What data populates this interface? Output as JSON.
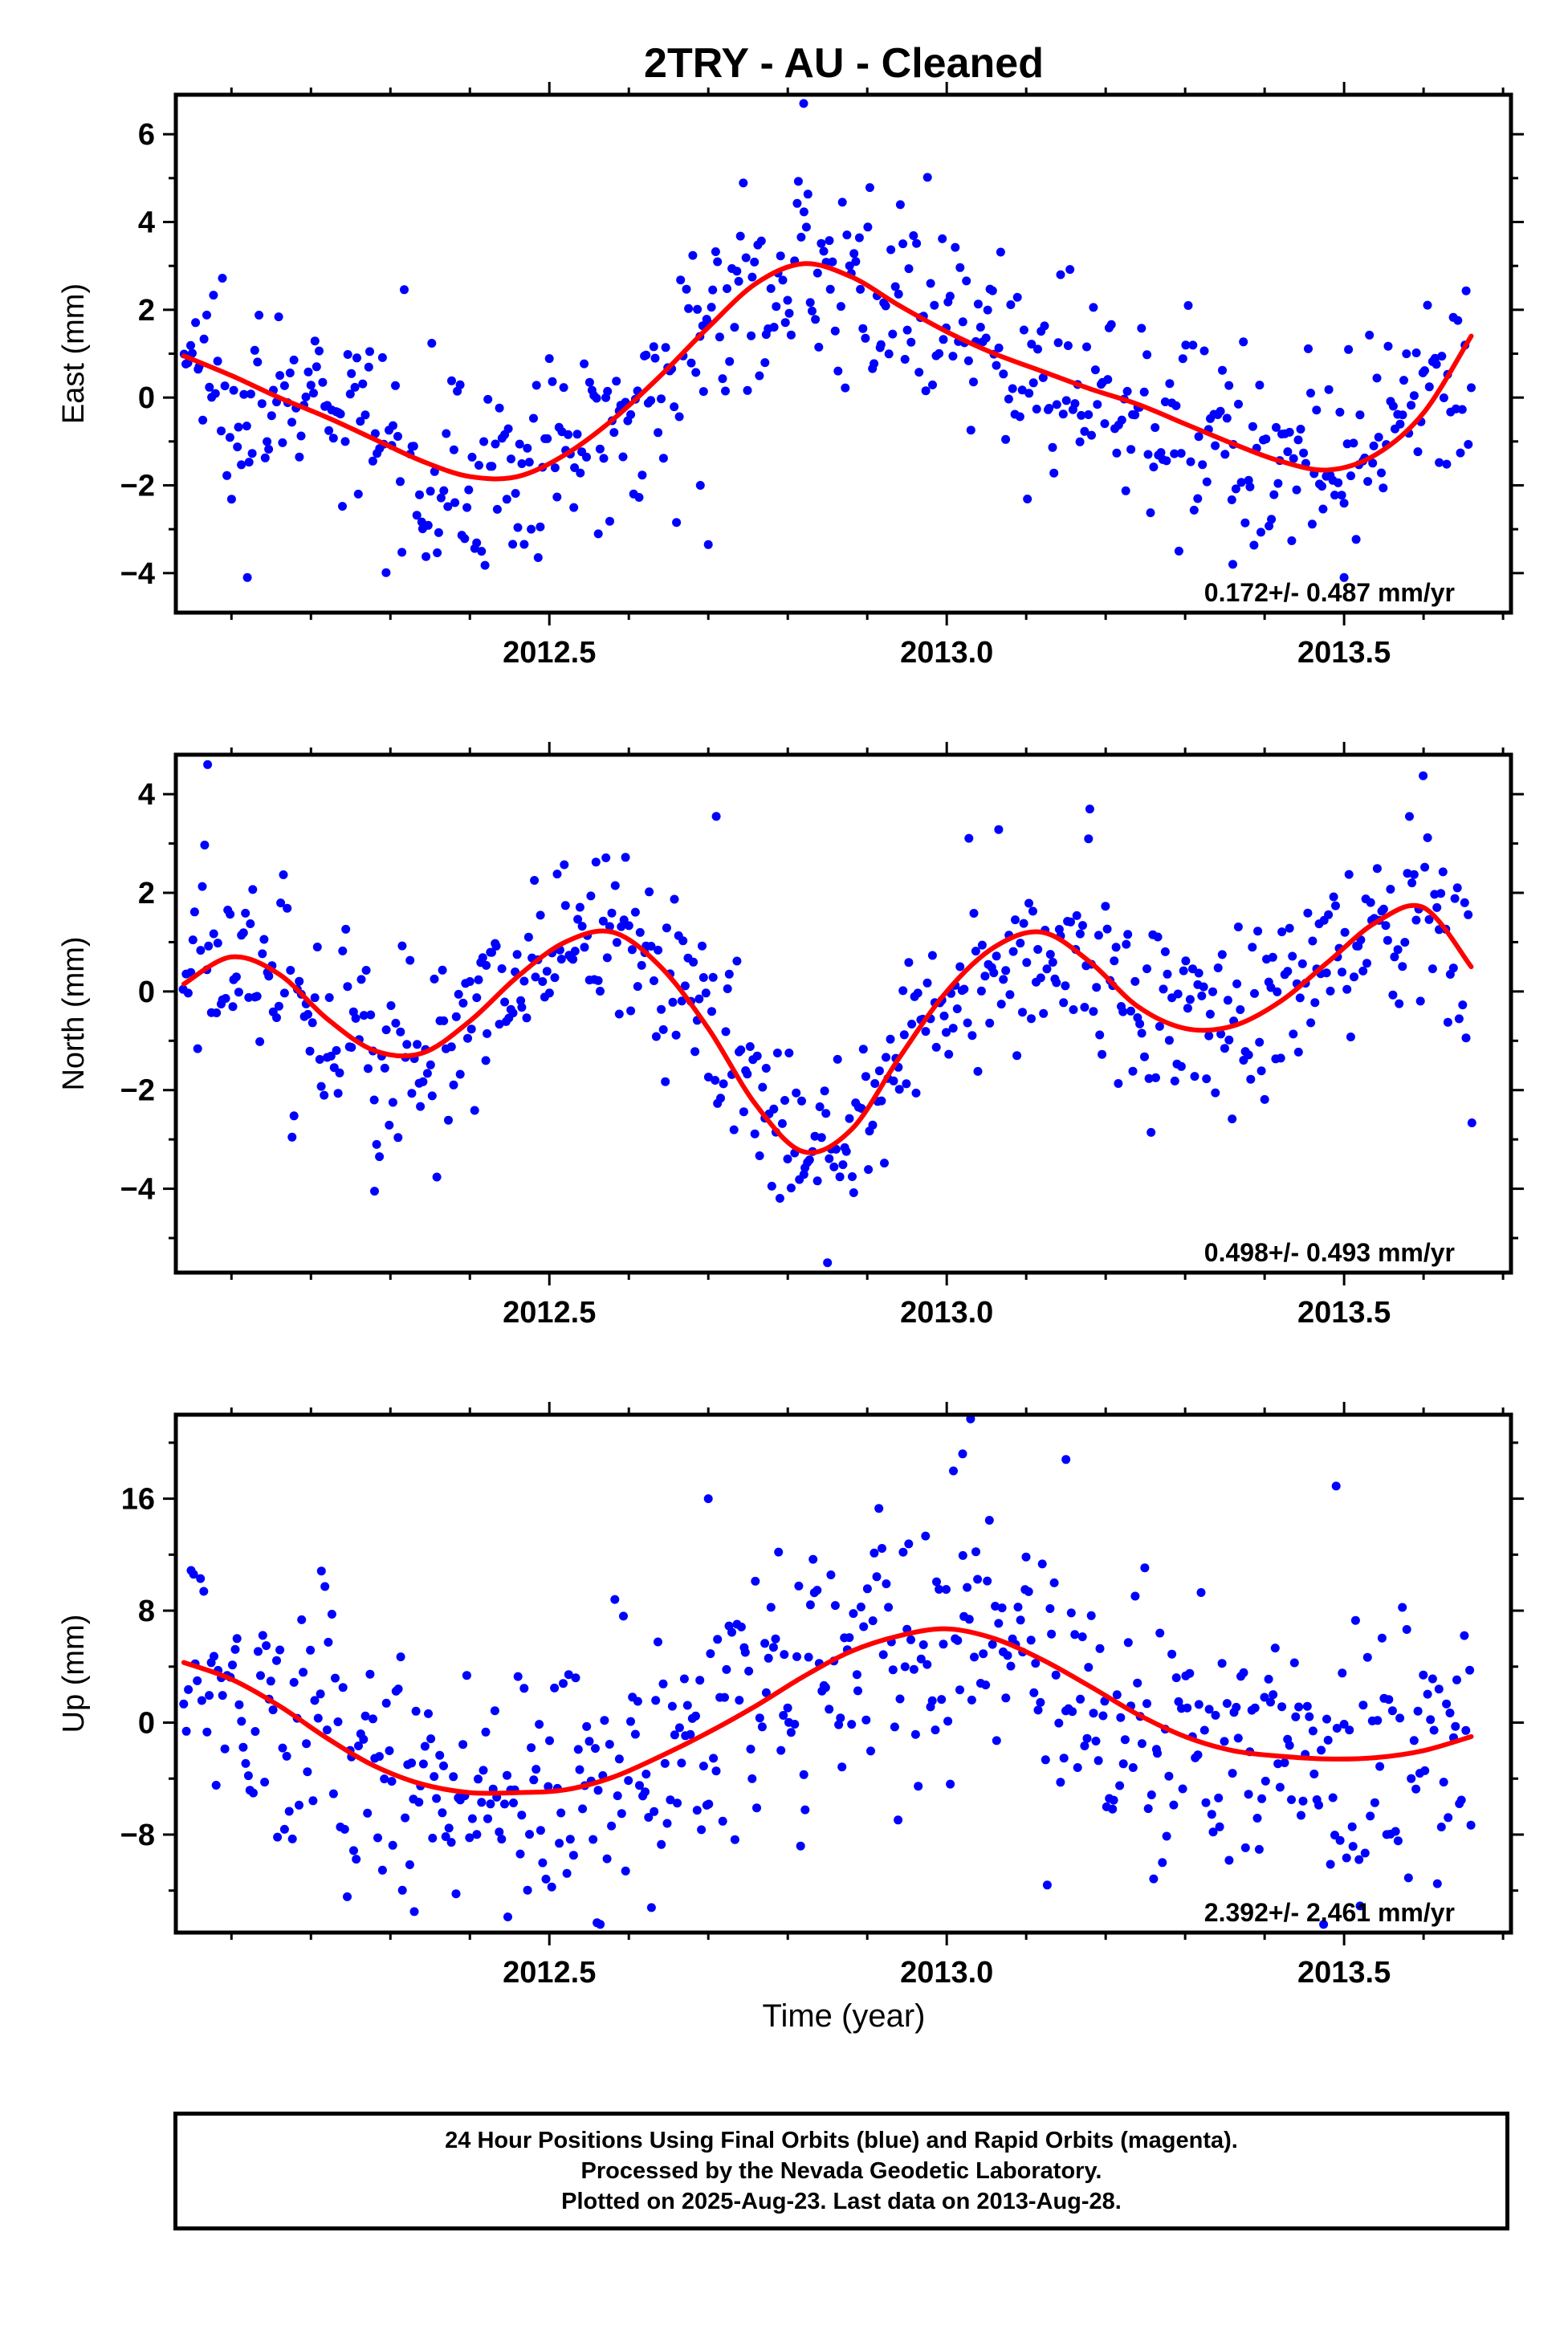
{
  "title": "2TRY  - AU - Cleaned",
  "xlabel": "Time (year)",
  "footer": {
    "line1": "24 Hour Positions Using Final Orbits (blue) and Rapid Orbits (magenta).",
    "line2": "Processed by the Nevada Geodetic Laboratory.",
    "line3": "Plotted on 2025-Aug-23. Last data on 2013-Aug-28."
  },
  "colors": {
    "points": "#0000ff",
    "fit": "#ff0000",
    "axes": "#000000"
  },
  "chart_data": [
    {
      "type": "scatter",
      "ylabel": "East (mm)",
      "rate_text": "0.172+/- 0.487 mm/yr",
      "xlim": [
        2012.03,
        2013.71
      ],
      "ylim": [
        -4.9,
        6.9
      ],
      "xticks": [
        2012.5,
        2013.0,
        2013.5
      ],
      "xtick_labels": [
        "2012.5",
        "2013.0",
        "2013.5"
      ],
      "yticks": [
        -4,
        -2,
        0,
        2,
        4,
        6
      ],
      "ytick_labels": [
        "−4",
        "−2",
        "0",
        "2",
        "4",
        "6"
      ],
      "series": [
        {
          "kind": "points",
          "scatter": 1.1,
          "outliers": [
            [
              2012.82,
              6.7
            ],
            [
              2012.12,
              -4.1
            ],
            [
              2012.7,
              -3.35
            ],
            [
              2012.69,
              -2.0
            ],
            [
              2013.36,
              -3.8
            ],
            [
              2013.5,
              -4.1
            ]
          ],
          "x": [
            2012.04,
            2012.1,
            2012.16,
            2012.22,
            2012.28,
            2012.34,
            2012.4,
            2012.46,
            2012.52,
            2012.58,
            2012.64,
            2012.7,
            2012.76,
            2012.82,
            2012.88,
            2012.94,
            2013.0,
            2013.06,
            2013.12,
            2013.18,
            2013.24,
            2013.3,
            2013.36,
            2013.42,
            2013.48,
            2013.54,
            2013.6,
            2013.66
          ],
          "y": [
            1.0,
            0.45,
            -0.05,
            -0.4,
            -0.85,
            -1.35,
            -1.75,
            -1.8,
            -1.35,
            -0.5,
            0.5,
            1.6,
            2.6,
            3.0,
            2.7,
            2.1,
            1.5,
            1.0,
            0.6,
            0.25,
            -0.1,
            -0.5,
            -0.95,
            -1.4,
            -1.7,
            -1.35,
            -0.35,
            1.2
          ]
        },
        {
          "kind": "fit",
          "x": [
            2012.04,
            2012.1,
            2012.16,
            2012.22,
            2012.28,
            2012.34,
            2012.4,
            2012.46,
            2012.52,
            2012.58,
            2012.64,
            2012.7,
            2012.76,
            2012.82,
            2012.88,
            2012.94,
            2013.0,
            2013.06,
            2013.12,
            2013.18,
            2013.24,
            2013.3,
            2013.36,
            2013.42,
            2013.48,
            2013.54,
            2013.6,
            2013.66
          ],
          "y": [
            0.95,
            0.5,
            0.0,
            -0.45,
            -0.95,
            -1.45,
            -1.8,
            -1.8,
            -1.3,
            -0.5,
            0.5,
            1.6,
            2.6,
            3.05,
            2.75,
            2.1,
            1.5,
            1.0,
            0.6,
            0.2,
            -0.15,
            -0.6,
            -1.05,
            -1.45,
            -1.65,
            -1.3,
            -0.35,
            1.4
          ]
        }
      ]
    },
    {
      "type": "scatter",
      "ylabel": "North (mm)",
      "rate_text": "0.498+/- 0.493 mm/yr",
      "xlim": [
        2012.03,
        2013.71
      ],
      "ylim": [
        -5.7,
        4.8
      ],
      "xticks": [
        2012.5,
        2013.0,
        2013.5
      ],
      "xtick_labels": [
        "2012.5",
        "2013.0",
        "2013.5"
      ],
      "yticks": [
        -4,
        -2,
        0,
        2,
        4
      ],
      "ytick_labels": [
        "−4",
        "−2",
        "0",
        "2",
        "4"
      ],
      "series": [
        {
          "kind": "points",
          "scatter": 1.0,
          "outliers": [
            [
              2012.07,
              4.6
            ],
            [
              2012.28,
              -4.05
            ],
            [
              2012.71,
              3.55
            ],
            [
              2012.85,
              -5.5
            ],
            [
              2013.18,
              3.7
            ],
            [
              2012.42,
              -1.4
            ]
          ],
          "x": [
            2012.04,
            2012.1,
            2012.16,
            2012.22,
            2012.28,
            2012.34,
            2012.4,
            2012.46,
            2012.52,
            2012.58,
            2012.64,
            2012.7,
            2012.76,
            2012.82,
            2012.88,
            2012.94,
            2013.0,
            2013.06,
            2013.12,
            2013.18,
            2013.24,
            2013.3,
            2013.36,
            2013.42,
            2013.48,
            2013.54,
            2013.6,
            2013.66
          ],
          "y": [
            0.2,
            0.7,
            0.3,
            -0.6,
            -1.2,
            -1.2,
            -0.6,
            0.3,
            1.0,
            1.2,
            0.5,
            -0.7,
            -2.2,
            -3.2,
            -2.8,
            -1.4,
            0.0,
            0.9,
            1.2,
            0.6,
            -0.3,
            -0.75,
            -0.7,
            -0.2,
            0.6,
            1.4,
            1.7,
            0.5
          ]
        },
        {
          "kind": "fit",
          "x": [
            2012.04,
            2012.1,
            2012.16,
            2012.22,
            2012.28,
            2012.34,
            2012.4,
            2012.46,
            2012.52,
            2012.58,
            2012.64,
            2012.7,
            2012.76,
            2012.82,
            2012.88,
            2012.94,
            2013.0,
            2013.06,
            2013.12,
            2013.18,
            2013.24,
            2013.3,
            2013.36,
            2013.42,
            2013.48,
            2013.54,
            2013.6,
            2013.66
          ],
          "y": [
            0.15,
            0.7,
            0.35,
            -0.55,
            -1.2,
            -1.25,
            -0.6,
            0.3,
            1.0,
            1.2,
            0.5,
            -0.75,
            -2.3,
            -3.25,
            -2.8,
            -1.35,
            0.0,
            0.9,
            1.2,
            0.6,
            -0.3,
            -0.75,
            -0.7,
            -0.2,
            0.6,
            1.4,
            1.7,
            0.5
          ]
        }
      ]
    },
    {
      "type": "scatter",
      "ylabel": "Up (mm)",
      "rate_text": "2.392+/- 2.461 mm/yr",
      "xlim": [
        2012.03,
        2013.71
      ],
      "ylim": [
        -15.0,
        22.0
      ],
      "xticks": [
        2012.5,
        2013.0,
        2013.5
      ],
      "xtick_labels": [
        "2012.5",
        "2013.0",
        "2013.5"
      ],
      "yticks": [
        -8,
        0,
        8,
        16
      ],
      "ytick_labels": [
        "−8",
        "0",
        "8",
        "16"
      ],
      "series": [
        {
          "kind": "points",
          "scatter": 4.8,
          "outliers": [
            [
              2013.03,
              21.7
            ],
            [
              2013.02,
              19.2
            ],
            [
              2013.15,
              18.8
            ],
            [
              2012.7,
              16.0
            ],
            [
              2013.49,
              16.9
            ],
            [
              2012.56,
              -14.3
            ],
            [
              2012.33,
              -13.5
            ]
          ],
          "x": [
            2012.04,
            2012.1,
            2012.16,
            2012.22,
            2012.28,
            2012.34,
            2012.4,
            2012.46,
            2012.52,
            2012.58,
            2012.64,
            2012.7,
            2012.76,
            2012.82,
            2012.88,
            2012.94,
            2013.0,
            2013.06,
            2013.12,
            2013.18,
            2013.24,
            2013.3,
            2013.36,
            2013.42,
            2013.48,
            2013.54,
            2013.6,
            2013.66
          ],
          "y": [
            4.3,
            3.2,
            1.3,
            -1.0,
            -3.0,
            -4.4,
            -5.0,
            -5.0,
            -4.8,
            -3.9,
            -2.4,
            -0.7,
            1.2,
            3.3,
            5.1,
            6.2,
            6.7,
            6.0,
            4.5,
            2.6,
            0.6,
            -1.0,
            -2.0,
            -2.4,
            -2.6,
            -2.5,
            -2.0,
            -1.0
          ]
        },
        {
          "kind": "fit",
          "x": [
            2012.04,
            2012.1,
            2012.16,
            2012.22,
            2012.28,
            2012.34,
            2012.4,
            2012.46,
            2012.52,
            2012.58,
            2012.64,
            2012.7,
            2012.76,
            2012.82,
            2012.88,
            2012.94,
            2013.0,
            2013.06,
            2013.12,
            2013.18,
            2013.24,
            2013.3,
            2013.36,
            2013.42,
            2013.48,
            2013.54,
            2013.6,
            2013.66
          ],
          "y": [
            4.3,
            3.1,
            1.2,
            -1.1,
            -3.1,
            -4.4,
            -5.0,
            -5.0,
            -4.8,
            -3.9,
            -2.4,
            -0.7,
            1.2,
            3.3,
            5.1,
            6.2,
            6.7,
            6.0,
            4.5,
            2.6,
            0.6,
            -1.0,
            -2.0,
            -2.4,
            -2.6,
            -2.5,
            -2.0,
            -1.0
          ]
        }
      ]
    }
  ]
}
